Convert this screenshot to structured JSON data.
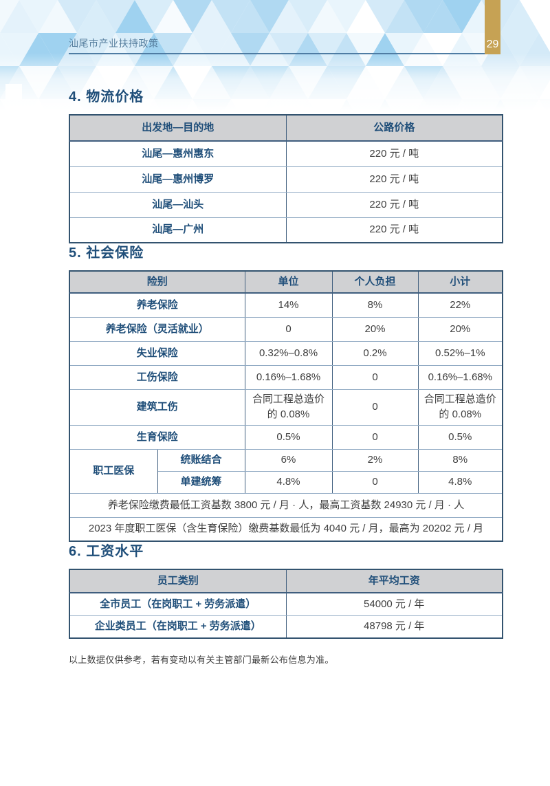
{
  "page": {
    "header_title": "汕尾市产业扶持政策",
    "page_number": "29",
    "footnote": "以上数据仅供参考，若有变动以有关主管部门最新公布信息为准。"
  },
  "colors": {
    "accent_navy": "#1f4e79",
    "gold_tab": "#c6a254",
    "table_header_bg": "#d0d1d3",
    "table_border_dark": "#33536f",
    "table_border_light": "#92abc4",
    "header_title_text": "#567e9e",
    "body_text": "#3e3e3e",
    "pattern_blues": [
      "#ffffff",
      "#f2f9fd",
      "#e4f2fb",
      "#d4eaf8",
      "#c3e2f5",
      "#b0d9f2",
      "#9fd2f0"
    ]
  },
  "sections": [
    {
      "title": "4. 物流价格",
      "table": {
        "headers": [
          "出发地—目的地",
          "公路价格"
        ],
        "rows": [
          [
            "汕尾—惠州惠东",
            "220 元 / 吨"
          ],
          [
            "汕尾—惠州博罗",
            "220 元 / 吨"
          ],
          [
            "汕尾—汕头",
            "220 元 / 吨"
          ],
          [
            "汕尾—广州",
            "220 元 / 吨"
          ]
        ]
      }
    },
    {
      "title": "5. 社会保险",
      "table": {
        "headers": [
          "险别",
          "单位",
          "个人负担",
          "小计"
        ],
        "rows": [
          [
            "养老保险",
            "14%",
            "8%",
            "22%"
          ],
          [
            "养老保险（灵活就业）",
            "0",
            "20%",
            "20%"
          ],
          [
            "失业保险",
            "0.32%–0.8%",
            "0.2%",
            "0.52%–1%"
          ],
          [
            "工伤保险",
            "0.16%–1.68%",
            "0",
            "0.16%–1.68%"
          ],
          [
            "建筑工伤",
            "合同工程总造价的 0.08%",
            "0",
            "合同工程总造价的 0.08%"
          ],
          [
            "生育保险",
            "0.5%",
            "0",
            "0.5%"
          ]
        ],
        "group_label": "职工医保",
        "group_rows": [
          [
            "统账结合",
            "6%",
            "2%",
            "8%"
          ],
          [
            "单建统筹",
            "4.8%",
            "0",
            "4.8%"
          ]
        ],
        "notes": [
          "养老保险缴费最低工资基数 3800 元 / 月 · 人，最高工资基数 24930 元 / 月 · 人",
          "2023 年度职工医保（含生育保险）缴费基数最低为 4040 元 / 月，最高为 20202 元 / 月"
        ]
      }
    },
    {
      "title": "6. 工资水平",
      "table": {
        "headers": [
          "员工类别",
          "年平均工资"
        ],
        "rows": [
          [
            "全市员工（在岗职工 + 劳务派遣）",
            "54000 元 / 年"
          ],
          [
            "企业类员工（在岗职工 + 劳务派遣）",
            "48798 元 / 年"
          ]
        ]
      }
    }
  ]
}
